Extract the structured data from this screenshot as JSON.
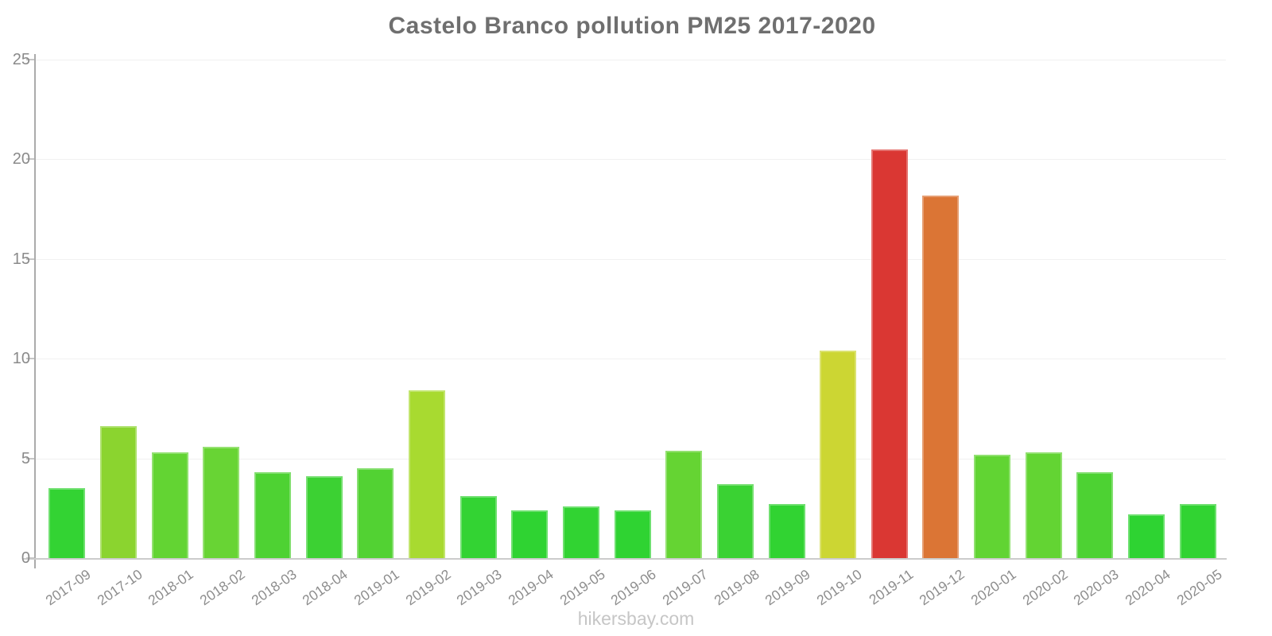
{
  "page": {
    "title": "Castelo Branco pollution PM25 2017-2020",
    "footer": "hikersbay.com"
  },
  "chart_data": {
    "type": "bar",
    "title": "Castelo Branco pollution PM25 2017-2020",
    "categories": [
      "2017-09",
      "2017-10",
      "2018-01",
      "2018-02",
      "2018-03",
      "2018-04",
      "2019-01",
      "2019-02",
      "2019-03",
      "2019-04",
      "2019-05",
      "2019-06",
      "2019-07",
      "2019-08",
      "2019-09",
      "2019-10",
      "2019-11",
      "2019-12",
      "2020-01",
      "2020-02",
      "2020-03",
      "2020-04",
      "2020-05"
    ],
    "values": [
      3.5,
      6.6,
      5.3,
      5.6,
      4.3,
      4.1,
      4.5,
      8.4,
      3.1,
      2.4,
      2.6,
      2.4,
      5.4,
      3.7,
      2.7,
      10.4,
      20.5,
      18.2,
      5.2,
      5.3,
      4.3,
      2.2,
      2.7
    ],
    "bar_colors": [
      "#33d333",
      "#8bd42f",
      "#63d433",
      "#68d434",
      "#4ed233",
      "#3cd133",
      "#52d233",
      "#a8da30",
      "#33d333",
      "#2fd332",
      "#31d332",
      "#2fd332",
      "#65d433",
      "#3ad233",
      "#31d332",
      "#ccd633",
      "#da3733",
      "#db7535",
      "#61d433",
      "#63d433",
      "#4dd233",
      "#2ed332",
      "#31d332"
    ],
    "xlabel": "",
    "ylabel": "",
    "ylim": [
      0,
      25
    ],
    "yticks": [
      0,
      5,
      10,
      15,
      20,
      25
    ],
    "grid": "horizontal-faint",
    "legend": "none",
    "watermark": "hikersbay.com"
  },
  "style": {
    "title_color": "#6f6f6f",
    "axis_line_color": "#ababab",
    "tick_label_color": "#8a8a8a",
    "grid_color": "#f1f1f1",
    "footer_color": "#c6c6c6"
  }
}
